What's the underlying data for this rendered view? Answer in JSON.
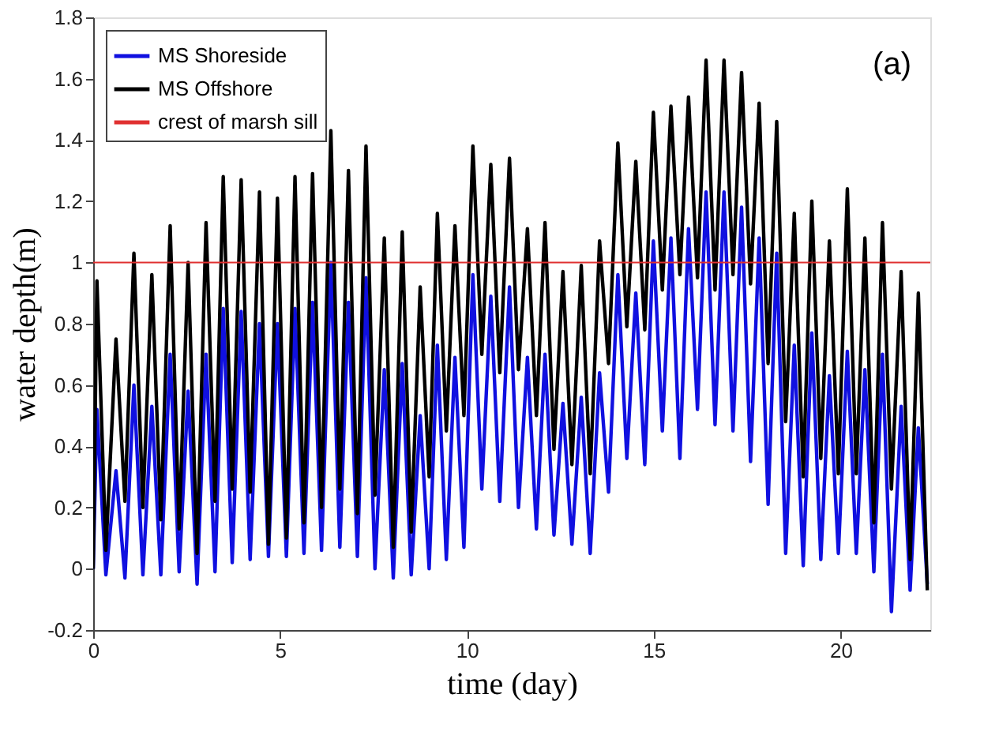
{
  "chart_data": {
    "type": "line",
    "xlabel": "time (day)",
    "ylabel": "water depth(m)",
    "x": [
      0,
      0.1,
      0.34,
      0.61,
      0.85,
      1.09,
      1.33,
      1.57,
      1.81,
      2.06,
      2.3,
      2.54,
      2.78,
      3.02,
      3.26,
      3.48,
      3.72,
      3.96,
      4.2,
      4.45,
      4.69,
      4.93,
      5.17,
      5.4,
      5.64,
      5.87,
      6.11,
      6.36,
      6.6,
      6.83,
      7.07,
      7.3,
      7.54,
      7.79,
      8.03,
      8.27,
      8.51,
      8.75,
      8.99,
      9.21,
      9.45,
      9.68,
      9.92,
      10.16,
      10.4,
      10.64,
      10.88,
      11.14,
      11.38,
      11.62,
      11.86,
      12.09,
      12.33,
      12.57,
      12.81,
      13.06,
      13.3,
      13.55,
      13.79,
      14.04,
      14.28,
      14.52,
      14.76,
      14.99,
      15.23,
      15.46,
      15.7,
      15.93,
      16.17,
      16.4,
      16.64,
      16.88,
      17.12,
      17.35,
      17.59,
      17.82,
      18.06,
      18.29,
      18.53,
      18.76,
      19.0,
      19.23,
      19.47,
      19.7,
      19.94,
      20.18,
      20.42,
      20.65,
      20.89,
      21.12,
      21.36,
      21.62,
      21.86,
      22.08,
      22.32
    ],
    "series": [
      {
        "name": "MS Shoreside",
        "color": "#1010e0",
        "values": [
          0,
          0.52,
          -0.02,
          0.32,
          -0.03,
          0.6,
          -0.02,
          0.53,
          -0.02,
          0.7,
          -0.01,
          0.58,
          -0.05,
          0.7,
          -0.01,
          0.85,
          0.02,
          0.84,
          0.03,
          0.8,
          0.04,
          0.8,
          0.04,
          0.85,
          0.05,
          0.87,
          0.06,
          1.0,
          0.07,
          0.87,
          0.04,
          0.95,
          0.0,
          0.65,
          -0.03,
          0.67,
          -0.02,
          0.5,
          0.0,
          0.73,
          0.03,
          0.69,
          0.07,
          0.96,
          0.26,
          0.89,
          0.22,
          0.92,
          0.2,
          0.69,
          0.13,
          0.7,
          0.11,
          0.54,
          0.08,
          0.56,
          0.05,
          0.64,
          0.25,
          0.96,
          0.36,
          0.9,
          0.34,
          1.07,
          0.45,
          1.08,
          0.36,
          1.11,
          0.52,
          1.23,
          0.47,
          1.23,
          0.45,
          1.18,
          0.35,
          1.08,
          0.21,
          1.03,
          0.05,
          0.73,
          0.01,
          0.77,
          0.03,
          0.63,
          0.05,
          0.71,
          0.05,
          0.65,
          -0.01,
          0.7,
          -0.14,
          0.53,
          -0.07,
          0.46,
          -0.05
        ]
      },
      {
        "name": "MS Offshore",
        "color": "#000000",
        "values": [
          0,
          0.94,
          0.06,
          0.75,
          0.22,
          1.03,
          0.2,
          0.96,
          0.16,
          1.12,
          0.13,
          1.0,
          0.05,
          1.13,
          0.22,
          1.28,
          0.26,
          1.27,
          0.25,
          1.23,
          0.08,
          1.21,
          0.1,
          1.28,
          0.15,
          1.29,
          0.2,
          1.43,
          0.26,
          1.3,
          0.18,
          1.38,
          0.24,
          1.08,
          0.07,
          1.1,
          0.12,
          0.92,
          0.3,
          1.16,
          0.45,
          1.12,
          0.5,
          1.38,
          0.7,
          1.32,
          0.64,
          1.34,
          0.65,
          1.11,
          0.5,
          1.13,
          0.39,
          0.97,
          0.34,
          0.99,
          0.31,
          1.07,
          0.67,
          1.39,
          0.79,
          1.33,
          0.78,
          1.49,
          0.91,
          1.51,
          0.96,
          1.54,
          0.95,
          1.66,
          0.91,
          1.66,
          0.96,
          1.62,
          0.93,
          1.52,
          0.67,
          1.46,
          0.48,
          1.16,
          0.3,
          1.2,
          0.36,
          1.07,
          0.31,
          1.24,
          0.31,
          1.08,
          0.15,
          1.13,
          0.26,
          0.97,
          0.03,
          0.9,
          -0.07
        ]
      }
    ],
    "ref_lines": [
      {
        "axis": "y",
        "value": 1,
        "label": "crest of marsh sill",
        "color": "#e03030"
      }
    ],
    "annotations": [
      "(a)"
    ],
    "xlim": [
      0,
      22.4
    ],
    "xticks": [
      0,
      5,
      10,
      15,
      20
    ],
    "ylim": [
      -0.2,
      1.8
    ],
    "yticks": [
      -0.2,
      0,
      0.2,
      0.4,
      0.6,
      0.8,
      1,
      1.2,
      1.4,
      1.6,
      1.8
    ],
    "grid": false,
    "legend": "top left",
    "line_style": "solid",
    "marker": "none"
  }
}
